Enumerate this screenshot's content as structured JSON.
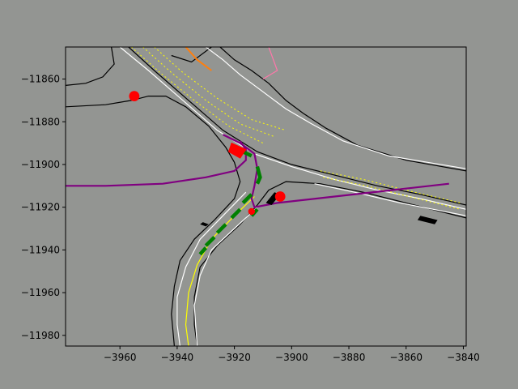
{
  "chart_data": {
    "type": "scatter",
    "title": "",
    "xlabel": "",
    "ylabel": "",
    "xlim": [
      -3979,
      -3839
    ],
    "ylim": [
      -11985,
      -11845
    ],
    "grid": false,
    "xticks": [
      -3960,
      -3940,
      -3920,
      -3900,
      -3880,
      -3860,
      -3840
    ],
    "yticks": [
      -11860,
      -11880,
      -11900,
      -11920,
      -11940,
      -11960,
      -11980
    ],
    "xtick_labels": [
      "−3960",
      "−3940",
      "−3920",
      "−3900",
      "−3880",
      "−3860",
      "−3840"
    ],
    "ytick_labels": [
      "−11860",
      "−11880",
      "−11900",
      "−11920",
      "−11940",
      "−11960",
      "−11980"
    ],
    "colors": {
      "background": "#939592",
      "road": "#8c8c8c",
      "road_edge": "#000000",
      "lane_line": "#ffffff",
      "centerline": "#ffff00",
      "ego_path": "#800080",
      "route": "#008000",
      "obstacle": "#ff0000",
      "vehicle": "#000000",
      "orange_path": "#ff7f0e",
      "pink_path": "#ff77aa"
    },
    "road_edges": [
      [
        [
          -3979,
          -11863
        ],
        [
          -3972,
          -11862
        ],
        [
          -3966,
          -11859
        ],
        [
          -3962,
          -11853
        ],
        [
          -3963,
          -11845
        ]
      ],
      [
        [
          -3979,
          -11873
        ],
        [
          -3965,
          -11872
        ],
        [
          -3956,
          -11870
        ],
        [
          -3950,
          -11868
        ],
        [
          -3944,
          -11868
        ],
        [
          -3937,
          -11873
        ],
        [
          -3929,
          -11882
        ],
        [
          -3923,
          -11892
        ],
        [
          -3920,
          -11899
        ],
        [
          -3918,
          -11908
        ],
        [
          -3920,
          -11916
        ],
        [
          -3927,
          -11926
        ],
        [
          -3934,
          -11935
        ],
        [
          -3939,
          -11945
        ],
        [
          -3941,
          -11957
        ],
        [
          -3942,
          -11970
        ],
        [
          -3941,
          -11985
        ]
      ],
      [
        [
          -3957,
          -11845
        ],
        [
          -3948,
          -11856
        ],
        [
          -3936,
          -11870
        ],
        [
          -3924,
          -11884
        ],
        [
          -3912,
          -11894
        ],
        [
          -3900,
          -11900
        ],
        [
          -3885,
          -11905
        ],
        [
          -3870,
          -11910
        ],
        [
          -3855,
          -11914
        ],
        [
          -3839,
          -11919
        ]
      ],
      [
        [
          -3925,
          -11845
        ],
        [
          -3920,
          -11851
        ],
        [
          -3914,
          -11856
        ],
        [
          -3908,
          -11862
        ],
        [
          -3902,
          -11870
        ],
        [
          -3896,
          -11876
        ],
        [
          -3888,
          -11883
        ],
        [
          -3877,
          -11891
        ],
        [
          -3860,
          -11898
        ],
        [
          -3839,
          -11903
        ]
      ],
      [
        [
          -3912,
          -11919
        ],
        [
          -3908,
          -11912
        ],
        [
          -3902,
          -11908
        ],
        [
          -3890,
          -11909
        ],
        [
          -3875,
          -11913
        ],
        [
          -3860,
          -11918
        ],
        [
          -3839,
          -11925
        ]
      ],
      [
        [
          -3912,
          -11919
        ],
        [
          -3918,
          -11928
        ],
        [
          -3926,
          -11938
        ],
        [
          -3932,
          -11948
        ],
        [
          -3934,
          -11962
        ],
        [
          -3934,
          -11975
        ],
        [
          -3933,
          -11985
        ]
      ],
      [
        [
          -3942,
          -11849
        ],
        [
          -3935,
          -11852
        ],
        [
          -3928,
          -11845
        ]
      ]
    ],
    "lane_lines": [
      [
        [
          -3960,
          -11845
        ],
        [
          -3950,
          -11856
        ],
        [
          -3938,
          -11870
        ],
        [
          -3926,
          -11884
        ],
        [
          -3913,
          -11895
        ],
        [
          -3900,
          -11901
        ],
        [
          -3885,
          -11907
        ],
        [
          -3870,
          -11912
        ],
        [
          -3855,
          -11916
        ],
        [
          -3839,
          -11921
        ]
      ],
      [
        [
          -3930,
          -11845
        ],
        [
          -3924,
          -11851
        ],
        [
          -3918,
          -11858
        ],
        [
          -3910,
          -11866
        ],
        [
          -3902,
          -11874
        ],
        [
          -3893,
          -11881
        ],
        [
          -3882,
          -11889
        ],
        [
          -3866,
          -11896
        ],
        [
          -3839,
          -11902
        ]
      ],
      [
        [
          -3892,
          -11909
        ],
        [
          -3878,
          -11913
        ],
        [
          -3862,
          -11918
        ],
        [
          -3839,
          -11924
        ]
      ],
      [
        [
          -3916,
          -11913
        ],
        [
          -3924,
          -11924
        ],
        [
          -3932,
          -11935
        ],
        [
          -3937,
          -11948
        ],
        [
          -3940,
          -11962
        ],
        [
          -3940,
          -11975
        ],
        [
          -3939,
          -11985
        ]
      ],
      [
        [
          -3912,
          -11920
        ],
        [
          -3920,
          -11930
        ],
        [
          -3928,
          -11940
        ],
        [
          -3932,
          -11952
        ],
        [
          -3934,
          -11966
        ],
        [
          -3933,
          -11985
        ]
      ]
    ],
    "center_lines": [
      [
        [
          -3956,
          -11845
        ],
        [
          -3946,
          -11857
        ],
        [
          -3934,
          -11870
        ],
        [
          -3922,
          -11882
        ],
        [
          -3910,
          -11890
        ]
      ],
      [
        [
          -3952,
          -11845
        ],
        [
          -3942,
          -11857
        ],
        [
          -3930,
          -11870
        ],
        [
          -3918,
          -11881
        ],
        [
          -3906,
          -11887
        ]
      ],
      [
        [
          -3948,
          -11845
        ],
        [
          -3938,
          -11857
        ],
        [
          -3926,
          -11869
        ],
        [
          -3914,
          -11879
        ],
        [
          -3902,
          -11884
        ]
      ],
      [
        [
          -3890,
          -11903
        ],
        [
          -3875,
          -11907
        ],
        [
          -3860,
          -11912
        ],
        [
          -3841,
          -11918
        ]
      ],
      [
        [
          -3889,
          -11906
        ],
        [
          -3874,
          -11910
        ],
        [
          -3859,
          -11915
        ],
        [
          -3841,
          -11921
        ]
      ]
    ],
    "yellow_solid": [
      [
        -3913,
        -11915
      ],
      [
        -3920,
        -11924
      ],
      [
        -3928,
        -11935
      ],
      [
        -3933,
        -11947
      ],
      [
        -3936,
        -11960
      ],
      [
        -3937,
        -11975
      ],
      [
        -3936,
        -11985
      ]
    ],
    "ego_path": [
      [
        -3979,
        -11910
      ],
      [
        -3965,
        -11910
      ],
      [
        -3945,
        -11909
      ],
      [
        -3930,
        -11906
      ],
      [
        -3920,
        -11903
      ],
      [
        -3916,
        -11898
      ],
      [
        -3916,
        -11893
      ],
      [
        -3918,
        -11889
      ]
    ],
    "ego_path_2": [
      [
        -3924,
        -11886
      ],
      [
        -3918,
        -11890
      ],
      [
        -3913,
        -11895
      ],
      [
        -3912,
        -11902
      ],
      [
        -3913,
        -11910
      ],
      [
        -3914,
        -11916
      ],
      [
        -3913,
        -11920
      ],
      [
        -3905,
        -11918
      ],
      [
        -3885,
        -11915
      ],
      [
        -3865,
        -11912
      ],
      [
        -3845,
        -11909
      ]
    ],
    "route_dashes": [
      [
        [
          -3912,
          -11901
        ],
        [
          -3911,
          -11906
        ],
        [
          -3912,
          -11909
        ]
      ],
      [
        [
          -3914,
          -11914
        ],
        [
          -3917,
          -11918
        ]
      ],
      [
        [
          -3918,
          -11921
        ],
        [
          -3921,
          -11925
        ]
      ],
      [
        [
          -3923,
          -11928
        ],
        [
          -3926,
          -11932
        ]
      ],
      [
        [
          -3927,
          -11934
        ],
        [
          -3930,
          -11938
        ]
      ],
      [
        [
          -3930,
          -11939
        ],
        [
          -3932,
          -11942
        ]
      ],
      [
        [
          -3912,
          -11921
        ],
        [
          -3914,
          -11924
        ]
      ],
      [
        [
          -3917,
          -11894
        ],
        [
          -3914,
          -11896
        ]
      ]
    ],
    "obstacles": [
      {
        "x": -3955,
        "y": -11868,
        "r": 1.8
      },
      {
        "x": -3904,
        "y": -11915,
        "r": 1.8
      },
      {
        "x": -3914,
        "y": -11922,
        "r": 1.2
      }
    ],
    "obstacle_box": [
      [
        -3921,
        -11890
      ],
      [
        -3916,
        -11893
      ],
      [
        -3918,
        -11897
      ],
      [
        -3922,
        -11894
      ]
    ],
    "vehicles": [
      [
        [
          -3855,
          -11924
        ],
        [
          -3849,
          -11926
        ],
        [
          -3850,
          -11928
        ],
        [
          -3856,
          -11926
        ]
      ],
      [
        [
          -3931,
          -11927
        ],
        [
          -3929,
          -11928
        ],
        [
          -3930,
          -11929
        ],
        [
          -3932,
          -11928
        ]
      ],
      [
        [
          -3909,
          -11918
        ],
        [
          -3906,
          -11913
        ],
        [
          -3904,
          -11914
        ],
        [
          -3907,
          -11919
        ]
      ]
    ],
    "orange_path": [
      [
        -3937,
        -11845
      ],
      [
        -3933,
        -11851
      ],
      [
        -3930,
        -11854
      ],
      [
        -3928,
        -11856
      ]
    ],
    "pink_path": [
      [
        -3908,
        -11845
      ],
      [
        -3905,
        -11856
      ],
      [
        -3910,
        -11860
      ]
    ]
  }
}
